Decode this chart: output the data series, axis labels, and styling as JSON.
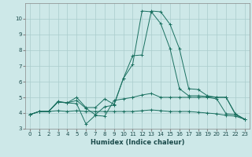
{
  "xlabel": "Humidex (Indice chaleur)",
  "bg_color": "#cde8e8",
  "grid_color": "#aacccc",
  "line_color": "#1a7060",
  "xlim": [
    -0.5,
    23.5
  ],
  "ylim": [
    3,
    11
  ],
  "yticks": [
    3,
    4,
    5,
    6,
    7,
    8,
    9,
    10
  ],
  "xticks": [
    0,
    1,
    2,
    3,
    4,
    5,
    6,
    7,
    8,
    9,
    10,
    11,
    12,
    13,
    14,
    15,
    16,
    17,
    18,
    19,
    20,
    21,
    22,
    23
  ],
  "series": [
    [
      3.9,
      4.1,
      4.1,
      4.15,
      4.1,
      4.15,
      4.1,
      4.1,
      4.1,
      4.1,
      4.1,
      4.1,
      4.15,
      4.2,
      4.15,
      4.1,
      4.1,
      4.1,
      4.05,
      4.0,
      3.95,
      3.85,
      3.8,
      3.6
    ],
    [
      3.9,
      4.1,
      4.1,
      4.7,
      4.65,
      4.6,
      3.3,
      3.85,
      3.8,
      4.8,
      4.9,
      5.0,
      5.15,
      5.25,
      5.0,
      5.0,
      5.0,
      5.0,
      5.0,
      5.0,
      4.9,
      3.95,
      3.9,
      3.6
    ],
    [
      3.9,
      4.1,
      4.1,
      4.75,
      4.65,
      5.0,
      4.35,
      4.35,
      4.9,
      4.55,
      6.2,
      7.1,
      10.5,
      10.45,
      9.7,
      8.1,
      5.55,
      5.1,
      5.1,
      5.05,
      5.0,
      5.0,
      3.9,
      3.6
    ],
    [
      3.9,
      4.1,
      4.1,
      4.7,
      4.65,
      4.8,
      4.3,
      3.9,
      4.4,
      4.5,
      6.2,
      7.65,
      7.7,
      10.5,
      10.45,
      9.65,
      8.1,
      5.55,
      5.5,
      5.1,
      5.0,
      5.0,
      3.95,
      3.6
    ]
  ]
}
